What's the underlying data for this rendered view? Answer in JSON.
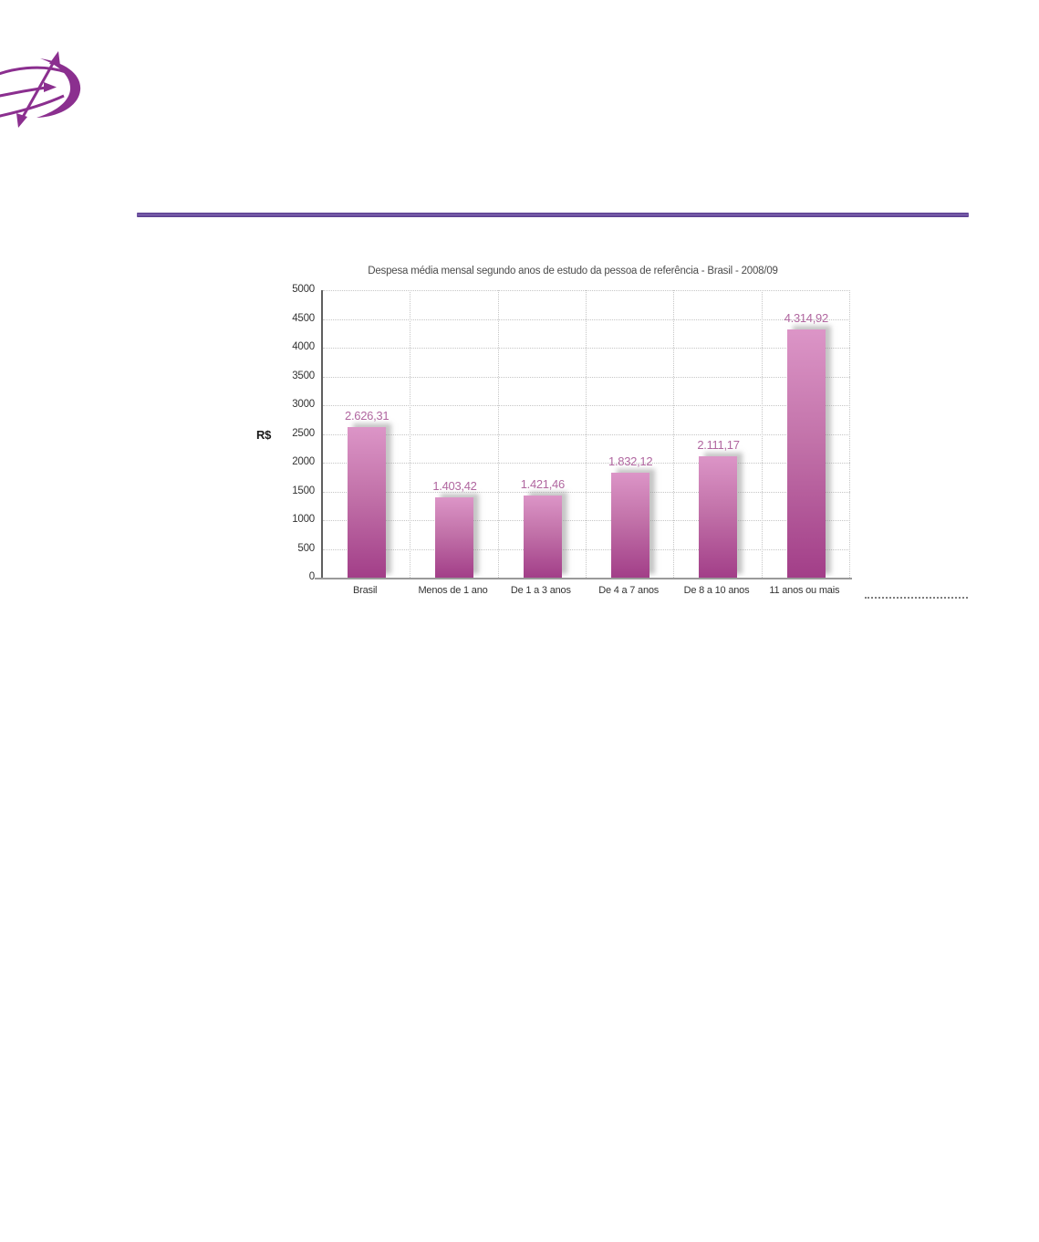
{
  "logo": {
    "name": "purple-orbit-swoosh-logo",
    "color": "#8b2f8f"
  },
  "divider": {
    "color": "#6a4b9f"
  },
  "chart_data": {
    "type": "bar",
    "title": "Despesa média mensal segundo anos de estudo da pessoa de referência - Brasil - 2008/09",
    "ylabel": "R$",
    "xlabel": "",
    "categories": [
      "Brasil",
      "Menos de 1 ano",
      "De 1 a 3 anos",
      "De 4 a 7 anos",
      "De 8 a 10 anos",
      "11 anos ou mais"
    ],
    "values": [
      2626.31,
      1403.42,
      1421.46,
      1832.12,
      2111.17,
      4314.92
    ],
    "value_labels": [
      "2.626,31",
      "1.403,42",
      "1.421,46",
      "1.832,12",
      "2.111,17",
      "4.314,92"
    ],
    "ylim": [
      0,
      5000
    ],
    "yticks": [
      "0",
      "500",
      "1000",
      "1500",
      "2000",
      "2500",
      "3000",
      "3500",
      "4000",
      "4500",
      "5000"
    ],
    "grid": "dotted",
    "legend": "none",
    "bar_color_top": "#dc95c7",
    "bar_color_bottom": "#a23e88",
    "value_label_color": "#b0669f"
  }
}
